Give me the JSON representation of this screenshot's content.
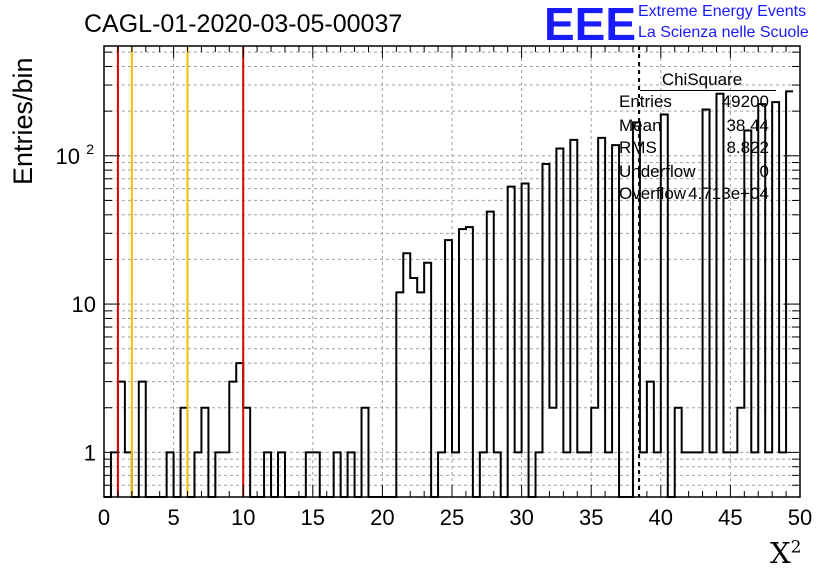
{
  "title": "CAGL-01-2020-03-05-00037",
  "logo": {
    "mark": "EEE",
    "line1": "Extreme Energy Events",
    "line2": "La Scienza nelle Scuole",
    "color": "#1a1aff"
  },
  "stats": {
    "name": "ChiSquare",
    "rows": [
      {
        "key": "Entries",
        "value": "49200"
      },
      {
        "key": "Mean",
        "value": "38.44"
      },
      {
        "key": "RMS",
        "value": "8.822"
      },
      {
        "key": "Underflow",
        "value": "0"
      },
      {
        "key": "Overflow",
        "value": "4.713e+04"
      }
    ]
  },
  "chart_data": {
    "type": "bar",
    "histogram": "step",
    "xlabel": "χ²",
    "ylabel": "Entries/bin",
    "xlim": [
      0,
      50
    ],
    "ylim": [
      0.5,
      550
    ],
    "yscale": "log",
    "grid": true,
    "bin_width": 0.5,
    "x_ticks": [
      "0",
      "5",
      "10",
      "15",
      "20",
      "25",
      "30",
      "35",
      "40",
      "45",
      "50"
    ],
    "y_ticks": [
      {
        "value": 1,
        "label": "1"
      },
      {
        "value": 10,
        "label": "10"
      },
      {
        "value": 100,
        "label": "10",
        "exp": "2"
      }
    ],
    "bin_values": [
      0,
      1,
      3,
      1,
      0,
      3,
      0,
      0,
      0,
      1,
      0,
      2,
      0,
      1,
      2,
      0,
      1,
      1,
      3,
      4,
      2,
      0,
      0,
      1,
      0,
      1,
      0,
      0,
      0,
      1,
      1,
      0,
      0,
      1,
      0,
      1,
      0,
      2,
      0,
      0,
      0,
      0,
      12,
      22,
      15,
      12,
      19,
      0,
      1,
      27,
      1,
      32,
      33,
      0,
      1,
      42,
      1,
      0,
      62,
      1,
      65,
      0,
      1,
      88,
      2,
      112,
      1,
      128,
      1,
      1,
      2,
      132,
      1,
      118,
      0,
      0,
      168,
      1,
      3,
      1,
      190,
      0,
      2,
      1,
      1,
      1,
      205,
      1,
      262,
      1,
      1,
      2,
      148,
      1,
      223,
      1,
      230,
      1,
      272
    ],
    "vertical_lines": [
      {
        "x": 1,
        "color": "#dd0000"
      },
      {
        "x": 2,
        "color": "#f0c000"
      },
      {
        "x": 6,
        "color": "#f0c000"
      },
      {
        "x": 10,
        "color": "#dd0000"
      },
      {
        "x": 38.44,
        "color": "#000000",
        "dashed": true
      }
    ],
    "colors": {
      "line": "#000000",
      "grid": "#a0a0a0"
    }
  }
}
